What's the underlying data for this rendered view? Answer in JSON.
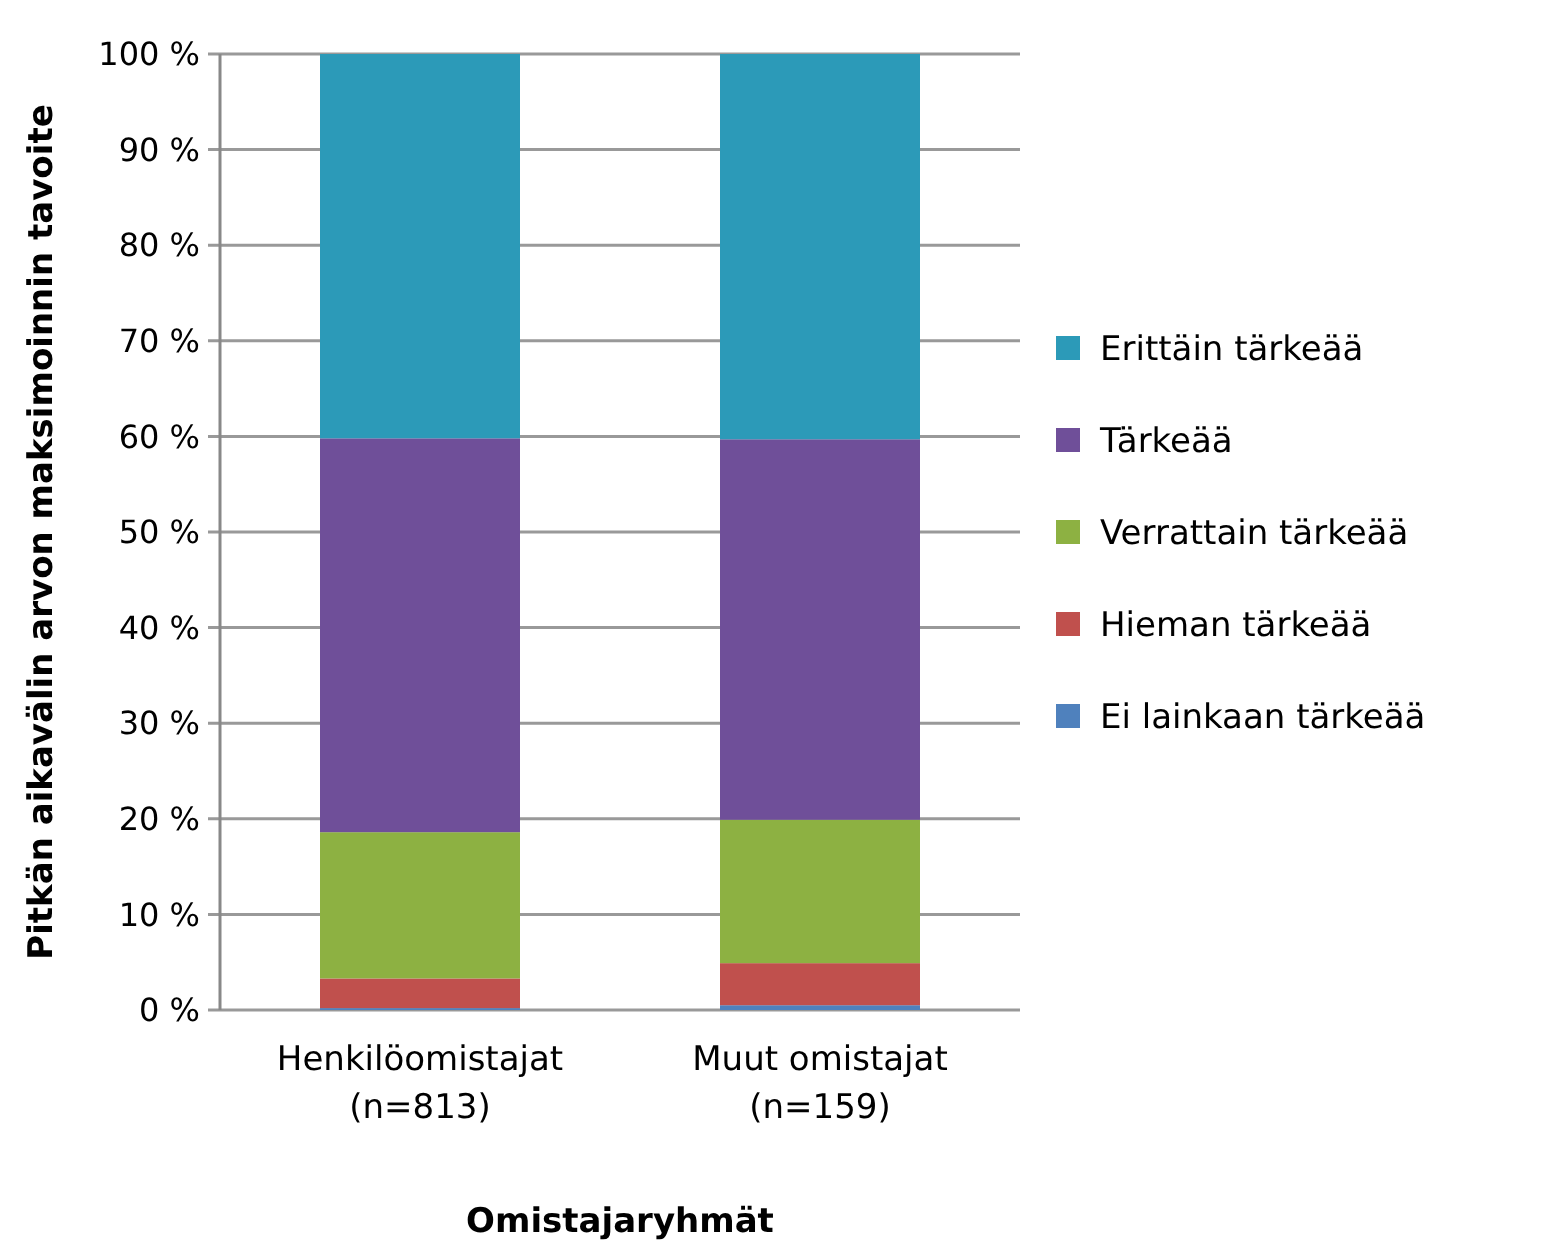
{
  "chart_data": {
    "type": "bar",
    "stacked": true,
    "xlabel": "Omistajaryhmät",
    "ylabel": "Pitkän aikavälin arvon maksimoinnin tavoite",
    "categories": [
      "Henkilöomistajat (n=813)",
      "Muut omistajat (n=159)"
    ],
    "series": [
      {
        "name": "Ei lainkaan tärkeää",
        "color": "#4f81bd",
        "values": [
          0.2,
          0.5
        ]
      },
      {
        "name": "Hieman tärkeää",
        "color": "#c0504d",
        "values": [
          3.1,
          4.4
        ]
      },
      {
        "name": "Verrattain tärkeää",
        "color": "#8db142",
        "values": [
          15.3,
          15.0
        ]
      },
      {
        "name": "Tärkeää",
        "color": "#6f4f99",
        "values": [
          41.2,
          39.8
        ]
      },
      {
        "name": "Erittäin tärkeää",
        "color": "#2c9ab8",
        "values": [
          40.2,
          40.3
        ]
      }
    ],
    "ylim": [
      0,
      100
    ],
    "yticks": [
      {
        "value": 0,
        "label": "0 %"
      },
      {
        "value": 10,
        "label": "10 %"
      },
      {
        "value": 20,
        "label": "20 %"
      },
      {
        "value": 30,
        "label": "30 %"
      },
      {
        "value": 40,
        "label": "40 %"
      },
      {
        "value": 50,
        "label": "50 %"
      },
      {
        "value": 60,
        "label": "60 %"
      },
      {
        "value": 70,
        "label": "70 %"
      },
      {
        "value": 80,
        "label": "80 %"
      },
      {
        "value": 90,
        "label": "90 %"
      },
      {
        "value": 100,
        "label": "100 %"
      }
    ],
    "grid": "y",
    "legend": "right"
  }
}
